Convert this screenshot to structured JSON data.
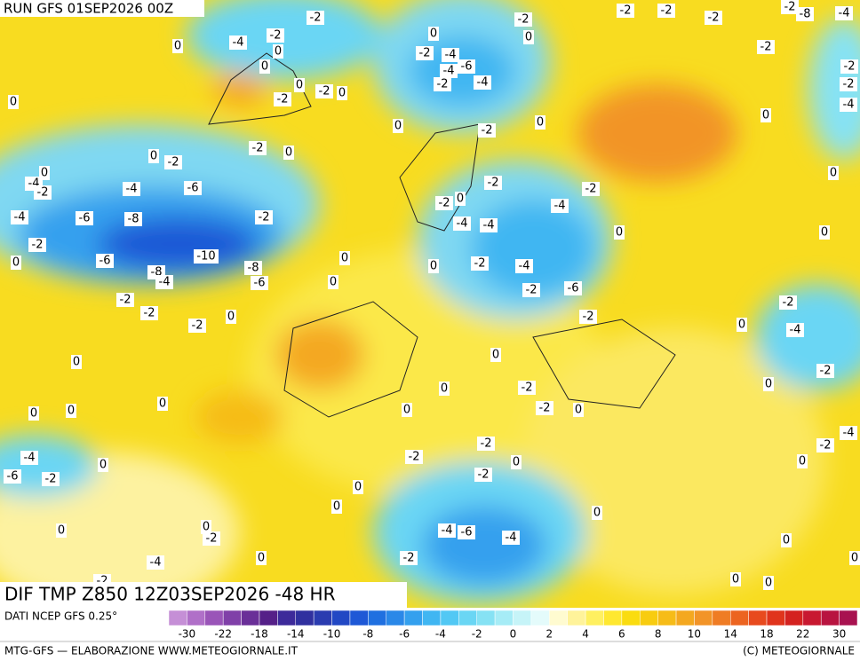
{
  "header": {
    "run": "RUN GFS 01SEP2026 00Z"
  },
  "map": {
    "title": "DIF TMP Z850 12Z03SEP2026 -48 HR",
    "labels": [
      -2,
      -4,
      -2,
      0,
      0,
      0,
      0,
      -2,
      -4,
      -4,
      -6,
      -2,
      -4,
      -2,
      0,
      -2,
      -2,
      -2,
      -2,
      -8,
      -4,
      -2,
      -2,
      -2,
      -4,
      0,
      0,
      0,
      -2,
      0,
      -2,
      0,
      -2,
      0,
      -2,
      0,
      0,
      -2,
      0,
      -4,
      -2,
      -4,
      -6,
      -2,
      -2,
      0,
      -2,
      0,
      -4,
      -4,
      -6,
      -8,
      -2,
      -4,
      -4,
      0,
      0,
      -2,
      0,
      -6,
      -10,
      -8,
      -4,
      -8,
      -6,
      0,
      0,
      0,
      -2,
      -4,
      -2,
      -6,
      -2,
      -2,
      0,
      -2,
      -2,
      0,
      -2,
      -4,
      0,
      0,
      -2,
      0,
      -2,
      0,
      0,
      0,
      0,
      0,
      -2,
      0,
      -4,
      -4,
      0,
      -2,
      -2,
      -6,
      -2,
      -2,
      0,
      0,
      -2,
      0,
      0,
      0,
      0,
      0,
      -2,
      -4,
      -6,
      -4,
      0,
      0,
      -2,
      -4,
      0,
      -2,
      0,
      0
    ]
  },
  "scale": {
    "source": "DATI NCEP GFS 0.25°",
    "colors": [
      "#c58fd6",
      "#b070c8",
      "#9a55b8",
      "#8040a8",
      "#6a2f98",
      "#552088",
      "#3d2a9a",
      "#30309f",
      "#2a3cb0",
      "#2248c4",
      "#1e58d6",
      "#2070e0",
      "#2a88e8",
      "#34a0ee",
      "#40b6f2",
      "#52c8f4",
      "#6ad6f4",
      "#86e2f4",
      "#a6ecf6",
      "#c6f4f8",
      "#e4fbfb",
      "#fffbd0",
      "#fff39a",
      "#fff060",
      "#ffe830",
      "#fadc10",
      "#f8cc10",
      "#f6bc18",
      "#f4a820",
      "#f29428",
      "#ef7c24",
      "#ec6420",
      "#e84a1e",
      "#e0341c",
      "#d42220",
      "#c81830",
      "#b81440",
      "#a81250"
    ],
    "labels": [
      -30,
      -22,
      -18,
      -14,
      -10,
      -8,
      -6,
      -4,
      -2,
      0,
      2,
      4,
      6,
      8,
      10,
      14,
      18,
      22,
      30
    ]
  },
  "footer": {
    "left": "MTG-GFS — ELABORAZIONE WWW.METEOGIORNALE.IT",
    "right": "(C) METEOGIORNALE"
  }
}
